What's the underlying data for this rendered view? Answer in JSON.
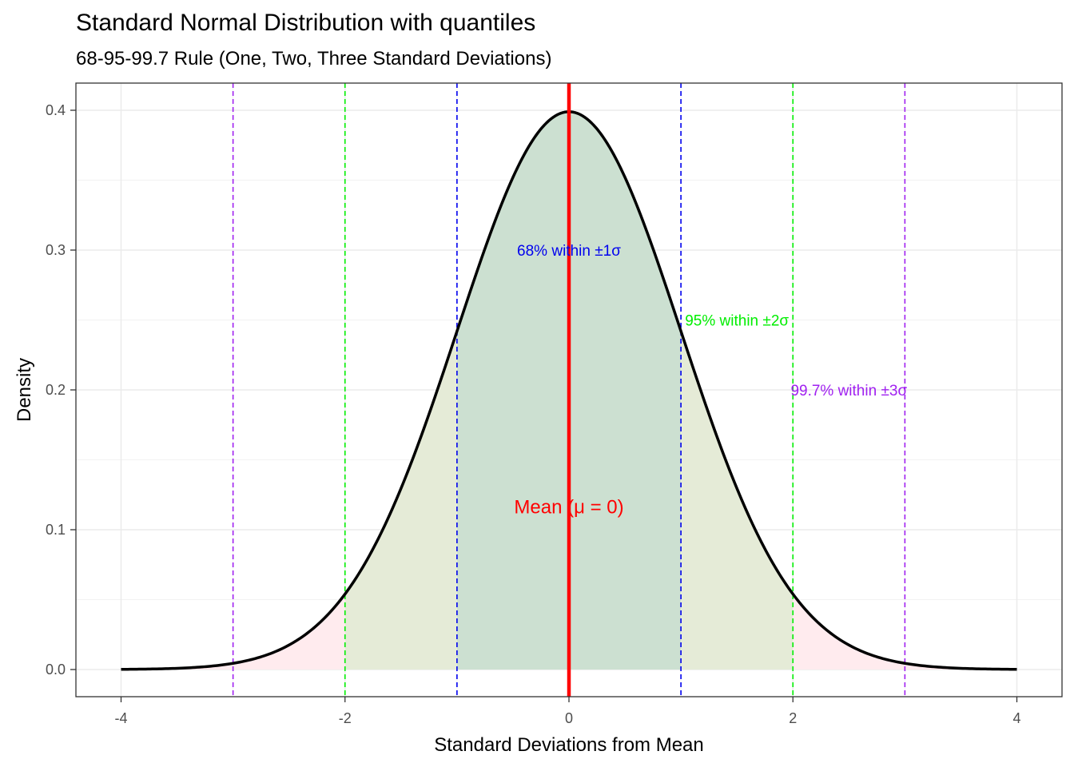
{
  "chart_data": {
    "type": "area",
    "title": "Standard Normal Distribution with quantiles",
    "subtitle": "68-95-99.7 Rule (One, Two, Three Standard Deviations)",
    "xlabel": "Standard Deviations from Mean",
    "ylabel": "Density",
    "xlim": [
      -4,
      4
    ],
    "ylim": [
      0,
      0.4
    ],
    "x_ticks": [
      "-4",
      "-2",
      "0",
      "2",
      "4"
    ],
    "y_ticks": [
      "0.0",
      "0.1",
      "0.2",
      "0.3",
      "0.4"
    ],
    "grid": true,
    "series": [
      {
        "x": [
          -4,
          -3.5,
          -3,
          -2.5,
          -2,
          -1.5,
          -1,
          -0.5,
          0,
          0.5,
          1,
          1.5,
          2,
          2.5,
          3,
          3.5,
          4
        ],
        "values": [
          0.0001,
          0.0009,
          0.0044,
          0.0175,
          0.054,
          0.1295,
          0.242,
          0.3521,
          0.3989,
          0.3521,
          0.242,
          0.1295,
          0.054,
          0.0175,
          0.0044,
          0.0009,
          0.0001
        ]
      }
    ],
    "shaded_regions": [
      {
        "from": -4,
        "to": 4,
        "color": "#ffebee"
      },
      {
        "from": -2,
        "to": 2,
        "color": "#e5ebd7"
      },
      {
        "from": -1,
        "to": 1,
        "color": "#cce0d1"
      }
    ],
    "vlines": [
      {
        "x": -3,
        "color": "#a020f0",
        "dashed": true
      },
      {
        "x": -2,
        "color": "#00ee00",
        "dashed": true
      },
      {
        "x": -1,
        "color": "#0000ee",
        "dashed": true
      },
      {
        "x": 1,
        "color": "#0000ee",
        "dashed": true
      },
      {
        "x": 2,
        "color": "#00ee00",
        "dashed": true
      },
      {
        "x": 3,
        "color": "#a020f0",
        "dashed": true
      },
      {
        "x": 0,
        "color": "#ff0000",
        "dashed": false
      }
    ],
    "annotations": [
      {
        "text": "68% within ±1σ",
        "x": 0,
        "y": 0.3,
        "color": "#0000ee"
      },
      {
        "text": "95% within ±2σ",
        "x": 1.5,
        "y": 0.25,
        "color": "#00ee00"
      },
      {
        "text": "99.7% within ±3σ",
        "x": 2.5,
        "y": 0.2,
        "color": "#a020f0"
      },
      {
        "text": "Mean (μ = 0)",
        "x": 0,
        "y": 0.117,
        "color": "#ff0000"
      }
    ]
  }
}
